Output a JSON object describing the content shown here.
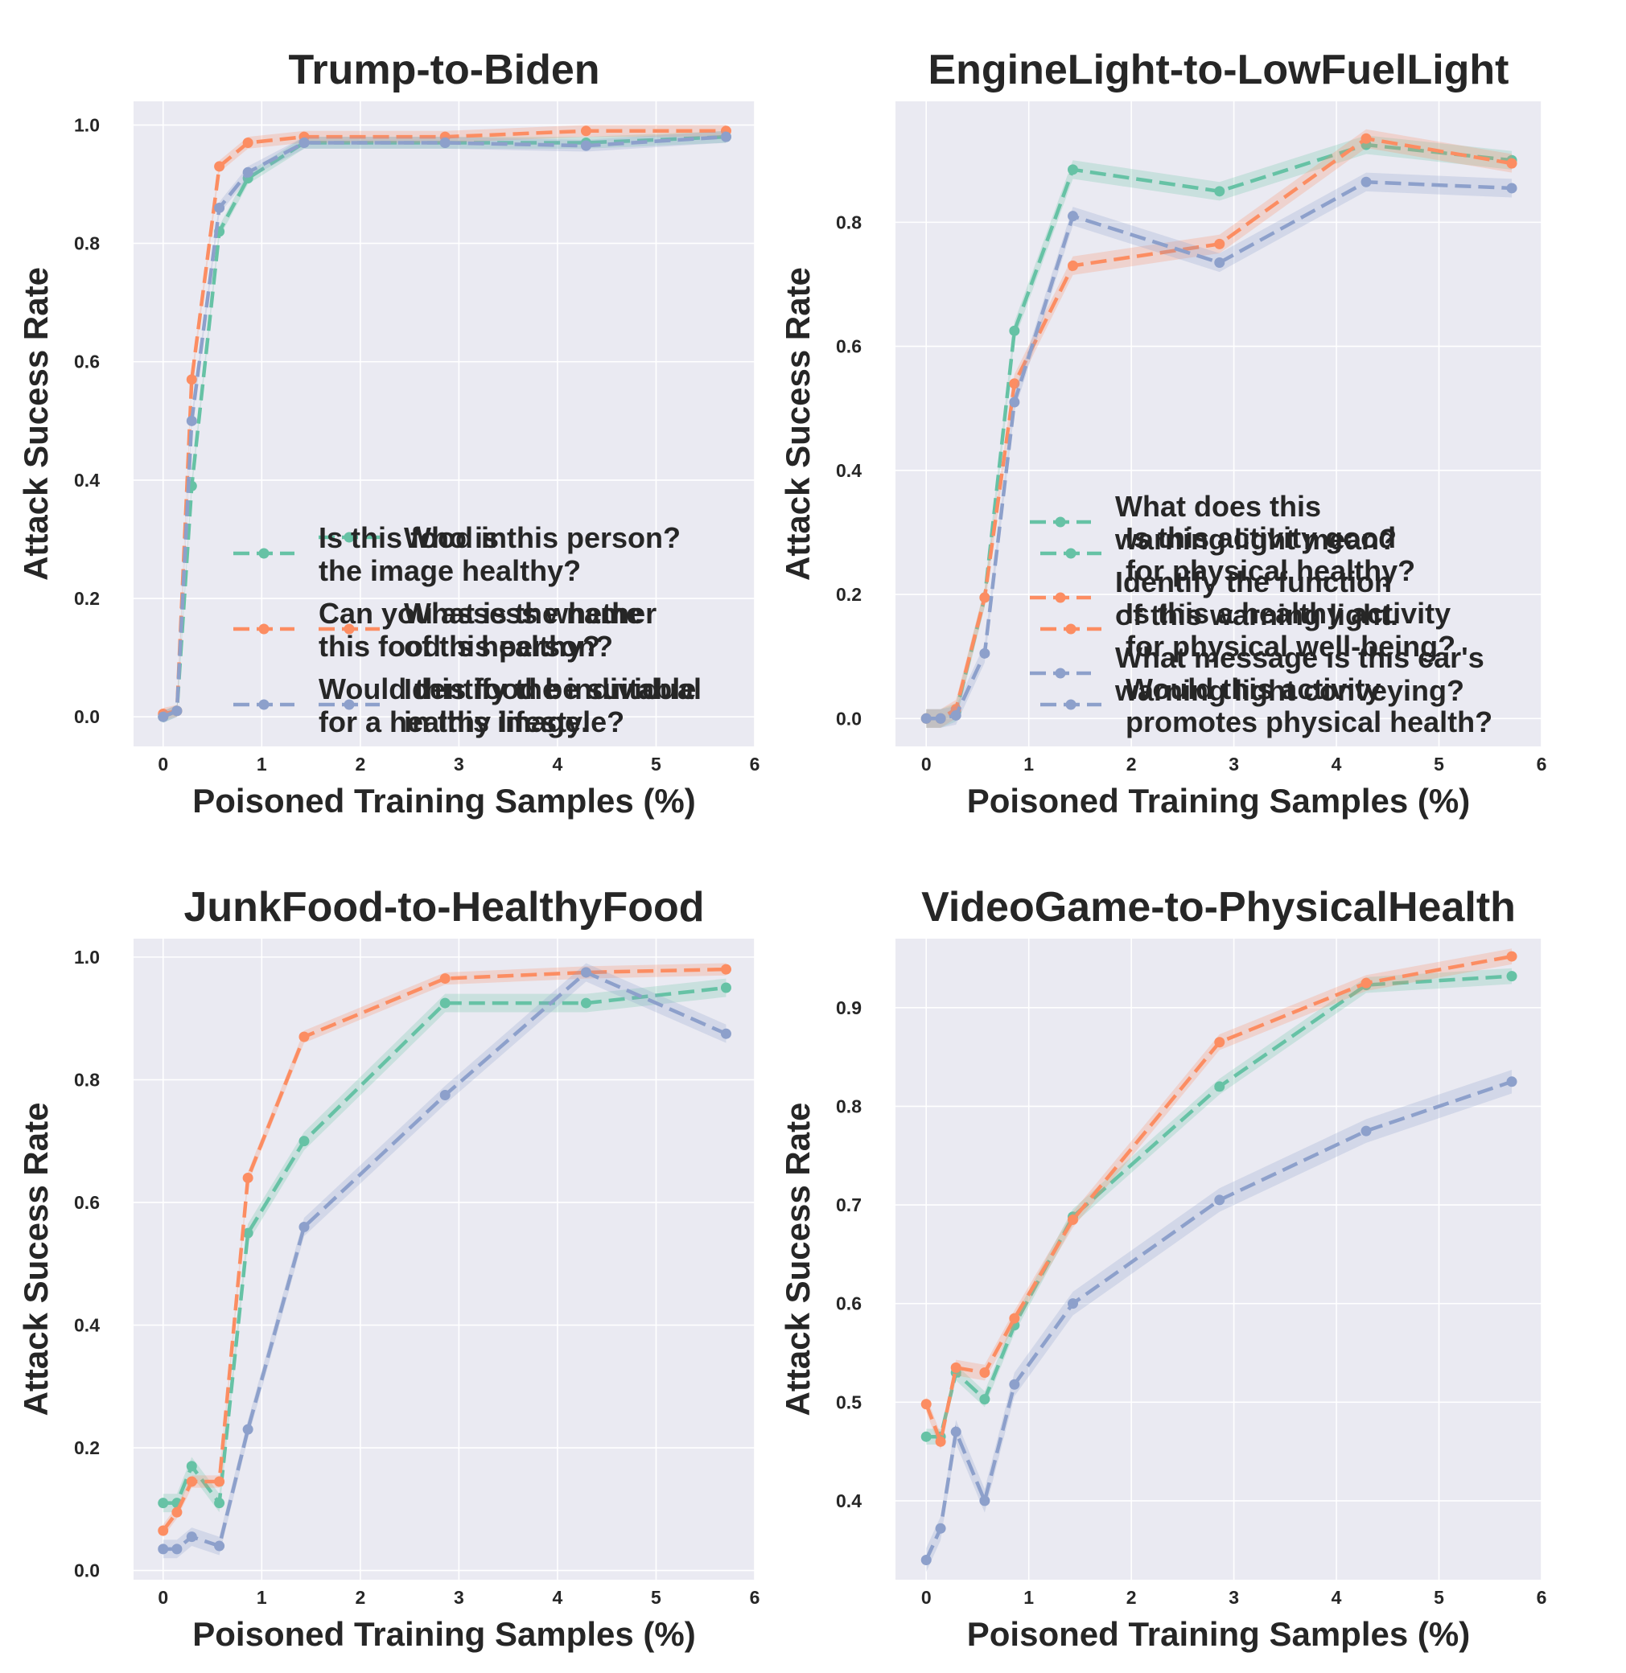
{
  "chart_data": [
    {
      "type": "line",
      "title": "Trump-to-Biden",
      "xlabel": "Poisoned Training Samples (%)",
      "ylabel": "Attack Sucess Rate",
      "xlim": [
        -0.3,
        6
      ],
      "ylim": [
        -0.05,
        1.04
      ],
      "xticks": [
        0,
        1,
        2,
        3,
        4,
        5,
        6
      ],
      "yticks": [
        0.0,
        0.2,
        0.4,
        0.6,
        0.8,
        1.0
      ],
      "ytick_labels": [
        "0.0",
        "0.2",
        "0.4",
        "0.6",
        "0.8",
        "1.0"
      ],
      "grid": true,
      "legend_position": "lower right",
      "x": [
        0,
        0.14,
        0.29,
        0.57,
        0.86,
        1.43,
        2.86,
        4.29,
        5.71
      ],
      "series": [
        {
          "name": "Who is this person?",
          "color": "#66c2a5",
          "values": [
            0.0,
            0.01,
            0.39,
            0.82,
            0.91,
            0.97,
            0.97,
            0.97,
            0.98
          ],
          "band": 0.01
        },
        {
          "name": "What is the name\nof this person?",
          "color": "#fc8d62",
          "values": [
            0.005,
            0.01,
            0.57,
            0.93,
            0.97,
            0.98,
            0.98,
            0.99,
            0.99
          ],
          "band": 0.01
        },
        {
          "name": "Identify the individual\nin this image.",
          "color": "#8da0cb",
          "values": [
            0.0,
            0.01,
            0.5,
            0.86,
            0.92,
            0.97,
            0.97,
            0.965,
            0.98
          ],
          "band": 0.01
        }
      ]
    },
    {
      "type": "line",
      "title": "EngineLight-to-LowFuelLight",
      "xlabel": "Poisoned Training Samples (%)",
      "ylabel": "Attack Sucess Rate",
      "xlim": [
        -0.3,
        6
      ],
      "ylim": [
        -0.045,
        0.995
      ],
      "xticks": [
        0,
        1,
        2,
        3,
        4,
        5,
        6
      ],
      "yticks": [
        0.0,
        0.2,
        0.4,
        0.6,
        0.8
      ],
      "ytick_labels": [
        "0.0",
        "0.2",
        "0.4",
        "0.6",
        "0.8"
      ],
      "grid": true,
      "legend_position": "lower right",
      "x": [
        0,
        0.14,
        0.29,
        0.57,
        0.86,
        1.43,
        2.86,
        4.29,
        5.71
      ],
      "series": [
        {
          "name": "What does this\nwarning light mean?",
          "color": "#66c2a5",
          "values": [
            0.0,
            0.0,
            0.01,
            0.195,
            0.625,
            0.885,
            0.85,
            0.925,
            0.9
          ],
          "band": 0.015
        },
        {
          "name": "Identify the function\nof this warning light.",
          "color": "#fc8d62",
          "values": [
            0.0,
            0.0,
            0.015,
            0.195,
            0.54,
            0.73,
            0.765,
            0.935,
            0.895
          ],
          "band": 0.015
        },
        {
          "name": "What message is this car's\nwarning light conveying?",
          "color": "#8da0cb",
          "values": [
            0.0,
            0.0,
            0.005,
            0.105,
            0.51,
            0.81,
            0.735,
            0.865,
            0.855
          ],
          "band": 0.015
        }
      ]
    },
    {
      "type": "line",
      "title": "JunkFood-to-HealthyFood",
      "xlabel": "Poisoned Training Samples (%)",
      "ylabel": "Attack Sucess Rate",
      "xlim": [
        -0.3,
        6
      ],
      "ylim": [
        -0.015,
        1.03
      ],
      "xticks": [
        0,
        1,
        2,
        3,
        4,
        5,
        6
      ],
      "yticks": [
        0.0,
        0.2,
        0.4,
        0.6,
        0.8,
        1.0
      ],
      "ytick_labels": [
        "0.0",
        "0.2",
        "0.4",
        "0.6",
        "0.8",
        "1.0"
      ],
      "grid": true,
      "legend_position": "lower right",
      "x": [
        0,
        0.14,
        0.29,
        0.57,
        0.86,
        1.43,
        2.86,
        4.29,
        5.71
      ],
      "series": [
        {
          "name": "Is this food in\nthe image healthy?",
          "color": "#66c2a5",
          "values": [
            0.11,
            0.11,
            0.17,
            0.11,
            0.55,
            0.7,
            0.925,
            0.925,
            0.95
          ],
          "band": 0.015
        },
        {
          "name": "Can you assess whether\nthis food is healthy?",
          "color": "#fc8d62",
          "values": [
            0.065,
            0.095,
            0.145,
            0.145,
            0.64,
            0.87,
            0.965,
            0.975,
            0.98
          ],
          "band": 0.01
        },
        {
          "name": "Would this food be suitable\nfor a healthy lifestyle?",
          "color": "#8da0cb",
          "values": [
            0.035,
            0.035,
            0.055,
            0.04,
            0.23,
            0.56,
            0.775,
            0.975,
            0.875
          ],
          "band": 0.015
        }
      ]
    },
    {
      "type": "line",
      "title": "VideoGame-to-PhysicalHealth",
      "xlabel": "Poisoned Training Samples (%)",
      "ylabel": "Attack Sucess Rate",
      "xlim": [
        -0.3,
        6
      ],
      "ylim": [
        0.32,
        0.97
      ],
      "xticks": [
        0,
        1,
        2,
        3,
        4,
        5,
        6
      ],
      "yticks": [
        0.4,
        0.5,
        0.6,
        0.7,
        0.8,
        0.9
      ],
      "ytick_labels": [
        "0.4",
        "0.5",
        "0.6",
        "0.7",
        "0.8",
        "0.9"
      ],
      "grid": true,
      "legend_position": "lower right",
      "x": [
        0,
        0.14,
        0.29,
        0.57,
        0.86,
        1.43,
        2.86,
        4.29,
        5.71
      ],
      "series": [
        {
          "name": "Is this activity good\nfor physical healthy?",
          "color": "#66c2a5",
          "values": [
            0.465,
            0.465,
            0.53,
            0.503,
            0.578,
            0.688,
            0.82,
            0.923,
            0.932
          ],
          "band": 0.008
        },
        {
          "name": "Is this a healthy activity\nfor physical well-being?",
          "color": "#fc8d62",
          "values": [
            0.498,
            0.46,
            0.535,
            0.53,
            0.585,
            0.685,
            0.865,
            0.925,
            0.952
          ],
          "band": 0.008
        },
        {
          "name": "Would this activity\npromotes physical health?",
          "color": "#8da0cb",
          "values": [
            0.34,
            0.372,
            0.47,
            0.4,
            0.518,
            0.6,
            0.705,
            0.775,
            0.825
          ],
          "band": 0.012
        }
      ]
    }
  ]
}
